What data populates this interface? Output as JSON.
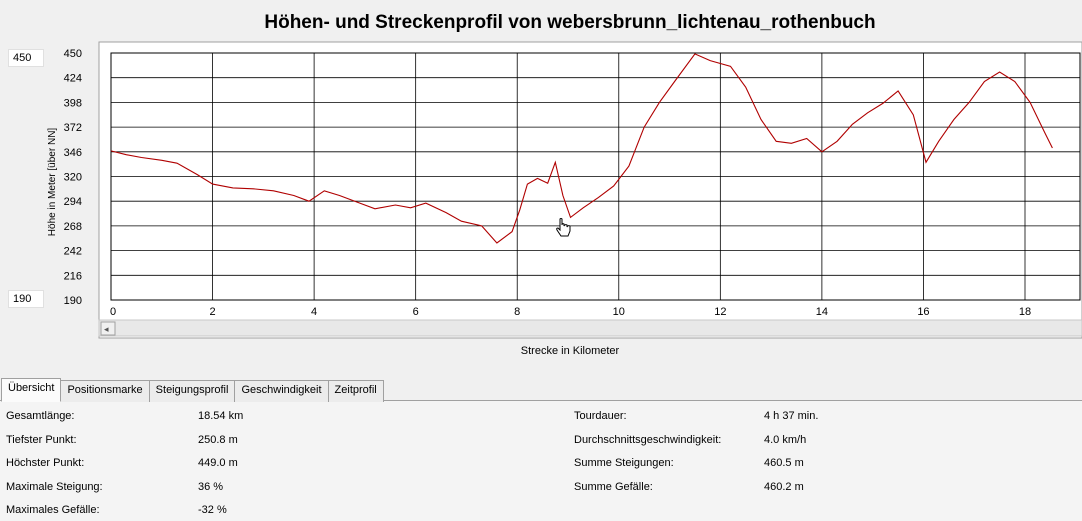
{
  "chart_data": {
    "type": "line",
    "title": "Höhen- und Streckenprofil von webersbrunn_lichtenau_rothenbuch",
    "xlabel": "Strecke in Kilometer",
    "ylabel": "Höhe in Meter [über NN]",
    "xlim": [
      0,
      18.54
    ],
    "ylim": [
      190,
      450
    ],
    "x_ticks": [
      0,
      2,
      4,
      6,
      8,
      10,
      12,
      14,
      16,
      18
    ],
    "y_ticks": [
      450,
      424,
      398,
      372,
      346,
      320,
      294,
      268,
      242,
      216,
      190
    ],
    "grid": true,
    "line_color": "#b00000",
    "series": [
      {
        "x": [
          0,
          0.3,
          0.6,
          1.0,
          1.3,
          1.7,
          2.0,
          2.4,
          2.8,
          3.2,
          3.6,
          3.9,
          4.2,
          4.5,
          4.9,
          5.2,
          5.6,
          5.9,
          6.2,
          6.6,
          6.9,
          7.3,
          7.6,
          7.9,
          8.05,
          8.2,
          8.4,
          8.6,
          8.75,
          8.9,
          9.05,
          9.3,
          9.6,
          9.9,
          10.2,
          10.5,
          10.8,
          11.1,
          11.5,
          11.8,
          12.2,
          12.5,
          12.8,
          13.1,
          13.4,
          13.7,
          14.0,
          14.3,
          14.6,
          14.9,
          15.2,
          15.5,
          15.8,
          16.05,
          16.3,
          16.6,
          16.9,
          17.2,
          17.5,
          17.8,
          18.1,
          18.4,
          18.54
        ],
        "y": [
          347,
          343,
          340,
          337,
          334,
          322,
          312,
          308,
          307,
          305,
          300,
          294,
          305,
          300,
          292,
          286,
          290,
          287,
          292,
          282,
          273,
          268,
          250,
          262,
          285,
          312,
          318,
          313,
          335,
          300,
          277,
          287,
          298,
          310,
          331,
          372,
          398,
          420,
          449,
          442,
          436,
          414,
          380,
          357,
          355,
          360,
          346,
          357,
          375,
          387,
          397,
          410,
          385,
          335,
          357,
          380,
          398,
          420,
          430,
          420,
          398,
          365,
          350
        ]
      }
    ]
  },
  "axis_boxes": {
    "ymax": "450",
    "ymin": "190"
  },
  "tabs": [
    "Übersicht",
    "Positionsmarke",
    "Steigungsprofil",
    "Geschwindigkeit",
    "Zeitprofil"
  ],
  "stats_left": [
    {
      "label": "Gesamtlänge:",
      "value": "18.54 km"
    },
    {
      "label": "Tiefster Punkt:",
      "value": "250.8 m"
    },
    {
      "label": "Höchster Punkt:",
      "value": "449.0 m"
    },
    {
      "label": "Maximale Steigung:",
      "value": "36 %"
    },
    {
      "label": "Maximales Gefälle:",
      "value": "-32 %"
    }
  ],
  "stats_right": [
    {
      "label": "Tourdauer:",
      "value": "4 h 37 min."
    },
    {
      "label": "Durchschnittsgeschwindigkeit:",
      "value": "4.0 km/h"
    },
    {
      "label": "Summe Steigungen:",
      "value": "460.5 m"
    },
    {
      "label": "Summe Gefälle:",
      "value": "460.2 m"
    }
  ]
}
